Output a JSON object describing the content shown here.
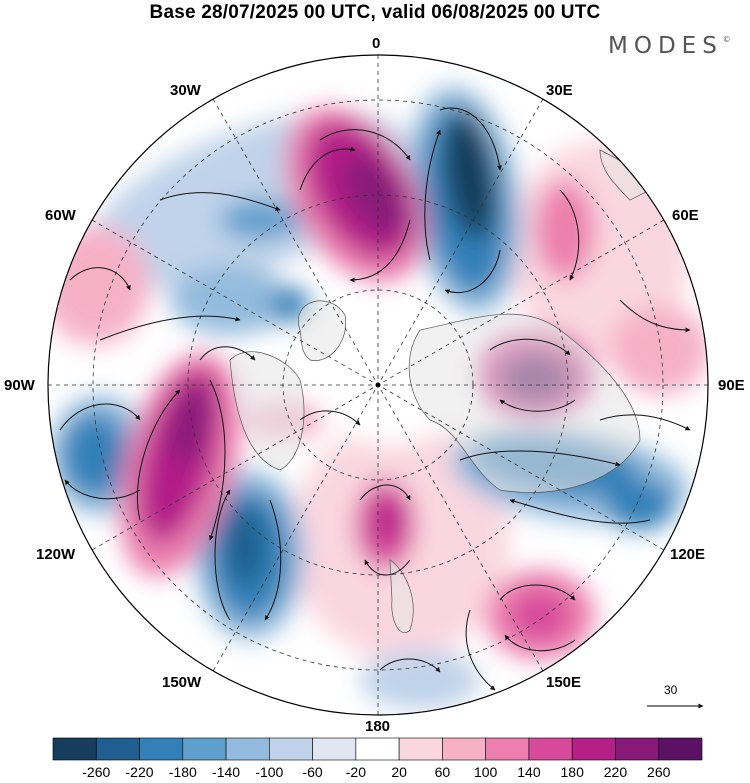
{
  "title": "Base 28/07/2025 00 UTC, valid 06/08/2025 00 UTC",
  "brand": {
    "name": "MODES",
    "mark": "©"
  },
  "longitude_labels": {
    "lon_0": "0",
    "lon_30e": "30E",
    "lon_60e": "60E",
    "lon_90e": "90E",
    "lon_120e": "120E",
    "lon_150e": "150E",
    "lon_180": "180",
    "lon_150w": "150W",
    "lon_120w": "120W",
    "lon_90w": "90W",
    "lon_60w": "60W",
    "lon_30w": "30W"
  },
  "reference_vector": {
    "label": "30"
  },
  "colorbar": {
    "ticks": [
      "-260",
      "-220",
      "-180",
      "-140",
      "-100",
      "-60",
      "-20",
      "20",
      "60",
      "100",
      "140",
      "180",
      "220",
      "260"
    ],
    "colors": [
      "#163d5c",
      "#1f5e8e",
      "#3380b8",
      "#5f9fcd",
      "#93bbdd",
      "#c0d3ea",
      "#e2e5f2",
      "#ffffff",
      "#fad7e0",
      "#f6b1c7",
      "#ec7fae",
      "#d74a9b",
      "#b41f88",
      "#871a79",
      "#5c1264"
    ]
  },
  "colors": {
    "land": "#e6e6e6",
    "coast": "#555555",
    "grid": "#333333",
    "vector": "#111111"
  }
}
